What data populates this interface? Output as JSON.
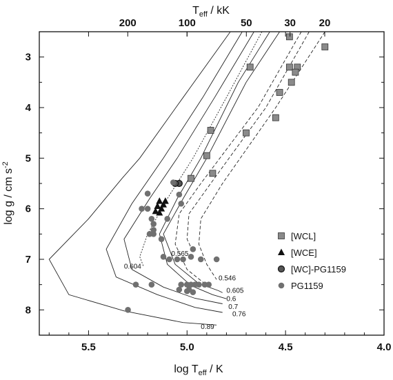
{
  "chart_data": {
    "type": "scatter",
    "x_axis": {
      "label": "log T",
      "label_sub": "eff",
      "label_tail": " / K",
      "range": [
        5.75,
        4.0
      ],
      "ticks": [
        "5.5",
        "5.0",
        "4.5",
        "4.0"
      ],
      "tick_values": [
        5.5,
        5.0,
        4.5,
        4.0
      ]
    },
    "top_axis": {
      "label": "T",
      "label_sub": "eff",
      "label_tail": " / kK",
      "ticks": [
        "200",
        "100",
        "50",
        "30",
        "20"
      ],
      "tick_values": [
        200,
        100,
        50,
        30,
        20
      ]
    },
    "y_axis": {
      "label": "log g / cm s",
      "label_sup": "-2",
      "range": [
        2.5,
        8.5
      ],
      "inverted": true,
      "ticks": [
        "3",
        "4",
        "5",
        "6",
        "7",
        "8"
      ],
      "tick_values": [
        3,
        4,
        5,
        6,
        7,
        8
      ]
    },
    "legend": {
      "placement": "right",
      "entries": [
        {
          "label": "[WCL]",
          "marker": "square",
          "color": "#8a8a8a",
          "text_color": "#8a8a8a"
        },
        {
          "label": "[WCE]",
          "marker": "triangle",
          "color": "#111111",
          "text_color": "#111111"
        },
        {
          "label": "[WC]-PG1159",
          "marker": "circle-outline",
          "color": "#555555",
          "text_color": "#111111"
        },
        {
          "label": "PG1159",
          "marker": "circle",
          "color": "#707070",
          "text_color": "#111111"
        }
      ]
    },
    "series": [
      {
        "name": "[WCL]",
        "marker": "square",
        "points": [
          [
            4.48,
            2.6
          ],
          [
            4.3,
            2.8
          ],
          [
            4.68,
            3.2
          ],
          [
            4.48,
            3.2
          ],
          [
            4.44,
            3.2
          ],
          [
            4.45,
            3.3
          ],
          [
            4.47,
            3.5
          ],
          [
            4.53,
            3.7
          ],
          [
            4.55,
            4.2
          ],
          [
            4.88,
            4.45
          ],
          [
            4.9,
            4.95
          ],
          [
            4.7,
            4.5
          ],
          [
            4.87,
            5.3
          ],
          [
            4.98,
            5.4
          ]
        ]
      },
      {
        "name": "[WCE]",
        "marker": "triangle",
        "points": [
          [
            5.14,
            5.85
          ],
          [
            5.11,
            5.85
          ],
          [
            5.12,
            5.92
          ],
          [
            5.15,
            5.95
          ],
          [
            5.13,
            6.0
          ],
          [
            5.16,
            6.05
          ],
          [
            5.14,
            6.08
          ]
        ]
      },
      {
        "name": "[WC]-PG1159",
        "marker": "circle-outline",
        "points": [
          [
            5.04,
            5.5
          ],
          [
            5.06,
            5.5
          ]
        ]
      },
      {
        "name": "PG1159",
        "marker": "circle",
        "points": [
          [
            5.07,
            5.48
          ],
          [
            5.2,
            5.7
          ],
          [
            5.23,
            6.0
          ],
          [
            5.2,
            6.0
          ],
          [
            5.18,
            6.2
          ],
          [
            5.17,
            6.3
          ],
          [
            5.17,
            6.42
          ],
          [
            5.19,
            6.5
          ],
          [
            5.17,
            6.5
          ],
          [
            5.1,
            6.2
          ],
          [
            5.04,
            5.72
          ],
          [
            5.03,
            5.9
          ],
          [
            5.13,
            6.6
          ],
          [
            5.12,
            6.95
          ],
          [
            5.09,
            7.0
          ],
          [
            5.05,
            7.0
          ],
          [
            5.02,
            7.0
          ],
          [
            4.98,
            6.95
          ],
          [
            4.97,
            6.8
          ],
          [
            4.93,
            7.0
          ],
          [
            4.85,
            7.0
          ],
          [
            5.03,
            7.5
          ],
          [
            5.0,
            7.5
          ],
          [
            4.98,
            7.5
          ],
          [
            4.96,
            7.5
          ],
          [
            4.94,
            7.5
          ],
          [
            4.91,
            7.5
          ],
          [
            4.89,
            7.5
          ],
          [
            4.99,
            7.6
          ],
          [
            5.0,
            7.63
          ],
          [
            4.97,
            7.65
          ],
          [
            5.04,
            7.6
          ],
          [
            5.18,
            7.5
          ],
          [
            5.26,
            7.5
          ],
          [
            5.3,
            8.0
          ]
        ]
      }
    ],
    "tracks": [
      {
        "label": "0.546",
        "style": "dashed",
        "points": [
          [
            4.3,
            2.5
          ],
          [
            4.55,
            4.0
          ],
          [
            4.82,
            5.5
          ],
          [
            4.93,
            6.2
          ],
          [
            4.94,
            6.7
          ],
          [
            4.9,
            7.1
          ],
          [
            4.85,
            7.4
          ]
        ],
        "label_at": [
          4.84,
          7.36
        ]
      },
      {
        "label": "0.565",
        "style": "dashed",
        "points": [
          [
            4.38,
            2.5
          ],
          [
            4.6,
            4.0
          ],
          [
            4.88,
            5.5
          ],
          [
            4.99,
            6.1
          ],
          [
            5.0,
            6.6
          ],
          [
            4.97,
            6.85
          ]
        ],
        "label_at": [
          5.08,
          6.88
        ]
      },
      {
        "label": "",
        "style": "dashed",
        "points": [
          [
            4.42,
            2.5
          ],
          [
            4.64,
            4.0
          ],
          [
            4.93,
            5.5
          ],
          [
            5.04,
            6.1
          ],
          [
            5.06,
            6.7
          ],
          [
            5.0,
            7.2
          ],
          [
            4.92,
            7.45
          ],
          [
            4.88,
            7.55
          ]
        ],
        "label_at": null
      },
      {
        "label": "0.6",
        "style": "solid",
        "points": [
          [
            4.58,
            2.5
          ],
          [
            4.74,
            3.5
          ],
          [
            4.93,
            5.0
          ],
          [
            5.05,
            5.8
          ],
          [
            5.14,
            6.5
          ],
          [
            5.1,
            7.1
          ],
          [
            4.98,
            7.52
          ],
          [
            4.87,
            7.7
          ],
          [
            4.8,
            7.78
          ]
        ],
        "label_at": [
          4.8,
          7.77
        ]
      },
      {
        "label": "0.605",
        "style": "solid",
        "points": [
          [
            4.53,
            2.5
          ],
          [
            4.7,
            3.5
          ],
          [
            4.9,
            5.0
          ],
          [
            5.02,
            5.8
          ],
          [
            5.12,
            6.5
          ],
          [
            5.06,
            7.1
          ],
          [
            4.94,
            7.48
          ],
          [
            4.84,
            7.62
          ],
          [
            4.82,
            7.66
          ]
        ],
        "label_at": [
          4.8,
          7.61
        ]
      },
      {
        "label": "0.604",
        "style": "dotted",
        "points": [
          [
            4.62,
            2.5
          ],
          [
            4.8,
            3.8
          ],
          [
            4.97,
            5.0
          ],
          [
            5.1,
            5.8
          ],
          [
            5.2,
            6.5
          ],
          [
            5.24,
            6.95
          ],
          [
            5.22,
            7.15
          ]
        ],
        "label_at": [
          5.32,
          7.13
        ]
      },
      {
        "label": "0.7",
        "style": "solid",
        "points": [
          [
            4.66,
            2.5
          ],
          [
            4.86,
            3.8
          ],
          [
            5.05,
            5.0
          ],
          [
            5.19,
            5.8
          ],
          [
            5.32,
            6.6
          ],
          [
            5.28,
            7.2
          ],
          [
            5.12,
            7.55
          ],
          [
            4.96,
            7.77
          ],
          [
            4.82,
            7.88
          ]
        ],
        "label_at": [
          4.79,
          7.93
        ]
      },
      {
        "label": "0.76",
        "style": "solid",
        "points": [
          [
            4.72,
            2.5
          ],
          [
            4.92,
            3.8
          ],
          [
            5.12,
            5.0
          ],
          [
            5.28,
            5.9
          ],
          [
            5.41,
            6.8
          ],
          [
            5.36,
            7.35
          ],
          [
            5.15,
            7.7
          ],
          [
            4.96,
            7.95
          ],
          [
            4.82,
            8.05
          ]
        ],
        "label_at": [
          4.77,
          8.07
        ]
      },
      {
        "label": "0.89",
        "style": "solid",
        "points": [
          [
            4.78,
            2.5
          ],
          [
            5.02,
            3.8
          ],
          [
            5.24,
            5.0
          ],
          [
            5.33,
            5.4
          ],
          [
            5.5,
            6.2
          ],
          [
            5.7,
            7.0
          ],
          [
            5.6,
            7.7
          ],
          [
            5.32,
            8.02
          ],
          [
            5.02,
            8.25
          ],
          [
            4.85,
            8.3
          ]
        ],
        "label_at": [
          4.93,
          8.32
        ]
      }
    ]
  }
}
